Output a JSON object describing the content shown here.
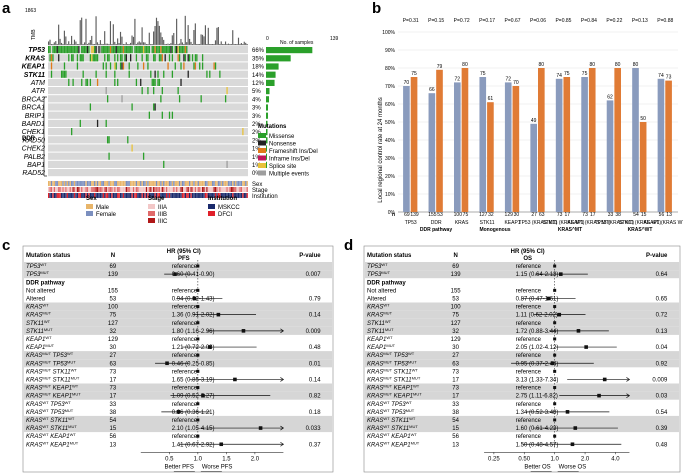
{
  "panels": {
    "a": {
      "letter": "a",
      "ddr_label": "DDR",
      "tmb_label": "TMB",
      "tmb_max": "1863",
      "no_samples_label": "No. of samples",
      "no_samples_ticks": [
        "0",
        "139"
      ],
      "genes": [
        "TP53",
        "KRAS",
        "KEAP1",
        "STK11",
        "ATM",
        "ATR",
        "BRCA2",
        "BRCA1",
        "BRIP1",
        "BARD1",
        "CHEK1",
        "RAD50",
        "CHEK2",
        "PALB2",
        "BAP1",
        "RAD52"
      ],
      "pcts": [
        "66%",
        "35%",
        "18%",
        "14%",
        "12%",
        "5%",
        "4%",
        "3%",
        "3%",
        "2%",
        "2%",
        "2%",
        "1%",
        "1%",
        "1%",
        "0%"
      ],
      "counts": [
        92,
        49,
        25,
        19,
        17,
        7,
        6,
        4,
        4,
        3,
        3,
        3,
        2,
        2,
        2,
        0
      ],
      "row_colors": [
        "#2aa02a",
        "#2aa02a",
        "#2aa02a",
        "#2aa02a",
        "#2aa02a",
        "#2aa02a",
        "#2aa02a",
        "#2aa02a",
        "#2aa02a",
        "#2aa02a",
        "#2aa02a",
        "#2aa02a",
        "#2aa02a",
        "#2aa02a",
        "#2aa02a",
        "#2aa02a"
      ],
      "track_labels": [
        "Sex",
        "Stage",
        "Institution"
      ],
      "mutations_legend_title": "Mutations",
      "mutations_legend": [
        {
          "label": "Missense",
          "color": "#2aa02a"
        },
        {
          "label": "Nonsense",
          "color": "#222222"
        },
        {
          "label": "Frameshift Ins/Del",
          "color": "#e07b1a"
        },
        {
          "label": "Inframe Ins/Del",
          "color": "#c2185b"
        },
        {
          "label": "Splice site",
          "color": "#e8c23a"
        },
        {
          "label": "Multiple events",
          "color": "#9e9e9e"
        }
      ],
      "sex_legend_title": "Sex",
      "sex_legend": [
        {
          "label": "Male",
          "color": "#e8b56a"
        },
        {
          "label": "Female",
          "color": "#7b8fbf"
        }
      ],
      "stage_legend_title": "Stage",
      "stage_legend": [
        {
          "label": "IIIA",
          "color": "#f2c7c7"
        },
        {
          "label": "IIIB",
          "color": "#e06a6a"
        },
        {
          "label": "IIIC",
          "color": "#b01818"
        }
      ],
      "institution_legend_title": "Institution",
      "institution_legend": [
        {
          "label": "MSKCC",
          "color": "#1a2a6c"
        },
        {
          "label": "DFCI",
          "color": "#e0202a"
        }
      ]
    },
    "b": {
      "letter": "b",
      "ylabel": "Local regional control rate at 24 months",
      "n_label": "n",
      "group_labels": [
        "DDR pathway",
        "Monogenous",
        "KRAS^MT",
        "KRAS^WT"
      ],
      "colors": {
        "wt": "#8a9bbd",
        "mt": "#e07b35"
      }
    },
    "c": {
      "letter": "c",
      "header": {
        "status": "Mutation status",
        "n": "N",
        "hr": "HR (95% CI)",
        "sub": "PFS",
        "p": "P-value"
      },
      "xaxis_ticks": [
        "0.5",
        "1.0",
        "1.5",
        "2.0"
      ],
      "left_label": "Better PFS",
      "right_label": "Worse PFS",
      "rows": [
        {
          "status": "TP53^WT",
          "n": "69",
          "hr": "reference",
          "p": "",
          "shade": true
        },
        {
          "status": "TP53^MUT",
          "n": "139",
          "hr": "0.60 (0.41-0.90)",
          "p": "0.007",
          "shade": true
        },
        {
          "status": "DDR pathway",
          "n": "",
          "hr": "",
          "p": "",
          "shade": false
        },
        {
          "status": "Not altered",
          "n": "155",
          "hr": "reference",
          "p": "",
          "shade": false
        },
        {
          "status": "Altered",
          "n": "53",
          "hr": "0.94 (0.62-1.43)",
          "p": "0.79",
          "shade": false
        },
        {
          "status": "KRAS^WT",
          "n": "100",
          "hr": "reference",
          "p": "",
          "shade": true
        },
        {
          "status": "KRAS^MUT",
          "n": "75",
          "hr": "1.36 (0.91-2.02)",
          "p": "0.14",
          "shade": true
        },
        {
          "status": "STK11^WT",
          "n": "127",
          "hr": "reference",
          "p": "",
          "shade": true
        },
        {
          "status": "STK11^MUT",
          "n": "32",
          "hr": "1.80 (1.16-2.96)",
          "p": "0.009",
          "shade": true
        },
        {
          "status": "KEAP1^WT",
          "n": "129",
          "hr": "reference",
          "p": "",
          "shade": false
        },
        {
          "status": "KEAP1^MUT",
          "n": "30",
          "hr": "1.21 (0.72-2.03)",
          "p": "0.48",
          "shade": false
        },
        {
          "status": "KRAS^MUT TP53^WT",
          "n": "27",
          "hr": "reference",
          "p": "",
          "shade": true
        },
        {
          "status": "KRAS^MUT TP53^MUT",
          "n": "63",
          "hr": "0.46 (0.25-0.85)",
          "p": "0.01",
          "shade": true
        },
        {
          "status": "KRAS^MUT STK11^WT",
          "n": "73",
          "hr": "reference",
          "p": "",
          "shade": false
        },
        {
          "status": "KRAS^MUT STK11^MUT",
          "n": "17",
          "hr": "1.65 (0.85-3.19)",
          "p": "0.14",
          "shade": false
        },
        {
          "status": "KRAS^MUT KEAP1^WT",
          "n": "73",
          "hr": "reference",
          "p": "",
          "shade": true
        },
        {
          "status": "KRAS^MUT KEAP1^MUT",
          "n": "17",
          "hr": "1.09 (0.52-2.27)",
          "p": "0.82",
          "shade": true
        },
        {
          "status": "KRAS^WT TP53^WT",
          "n": "33",
          "hr": "reference",
          "p": "",
          "shade": false
        },
        {
          "status": "KRAS^WT TP53^MUT",
          "n": "38",
          "hr": "0.66 (0.36-1.21)",
          "p": "0.18",
          "shade": false
        },
        {
          "status": "KRAS^WT STK11^WT",
          "n": "54",
          "hr": "reference",
          "p": "",
          "shade": true
        },
        {
          "status": "KRAS^WT STK11^MUT",
          "n": "15",
          "hr": "2.10 (1.05-4.15)",
          "p": "0.033",
          "shade": true
        },
        {
          "status": "KRAS^WT KEAP1^WT",
          "n": "56",
          "hr": "reference",
          "p": "",
          "shade": false
        },
        {
          "status": "KRAS^WT KEAP1^MUT",
          "n": "13",
          "hr": "1.41 (0.67-2.92)",
          "p": "0.37",
          "shade": false
        }
      ]
    },
    "d": {
      "letter": "d",
      "header": {
        "status": "Mutation status",
        "n": "N",
        "hr": "HR (95% CI)",
        "sub": "OS",
        "p": "P-value"
      },
      "xaxis_ticks": [
        "0.25",
        "0.50",
        "1.0",
        "2.0",
        "4.0"
      ],
      "left_label": "Better OS",
      "right_label": "Worse OS",
      "rows": [
        {
          "status": "TP53^WT",
          "n": "69",
          "hr": "reference",
          "p": "",
          "shade": true
        },
        {
          "status": "TP53^MUT",
          "n": "139",
          "hr": "1.15 (0.64-2.13)",
          "p": "0.64",
          "shade": true
        },
        {
          "status": "DDR pathway",
          "n": "",
          "hr": "",
          "p": "",
          "shade": false
        },
        {
          "status": "Not altered",
          "n": "155",
          "hr": "reference",
          "p": "",
          "shade": false
        },
        {
          "status": "Altered",
          "n": "53",
          "hr": "0.87 (0.47-1.61)",
          "p": "0.65",
          "shade": false
        },
        {
          "status": "KRAS^WT",
          "n": "100",
          "hr": "reference",
          "p": "",
          "shade": true
        },
        {
          "status": "KRAS^MUT",
          "n": "75",
          "hr": "1.11 (0.62-2.02)",
          "p": "0.72",
          "shade": true
        },
        {
          "status": "STK11^WT",
          "n": "127",
          "hr": "reference",
          "p": "",
          "shade": true
        },
        {
          "status": "STK11^MUT",
          "n": "32",
          "hr": "1.72 (0.88-3.44)",
          "p": "0.13",
          "shade": true
        },
        {
          "status": "KEAP1^WT",
          "n": "129",
          "hr": "reference",
          "p": "",
          "shade": false
        },
        {
          "status": "KEAP1^MUT",
          "n": "30",
          "hr": "2.05 (1.02-4.12)",
          "p": "0.04",
          "shade": false
        },
        {
          "status": "KRAS^MUT TP53^WT",
          "n": "27",
          "hr": "reference",
          "p": "",
          "shade": true
        },
        {
          "status": "KRAS^MUT TP53^MUT",
          "n": "63",
          "hr": "0.95 (0.37-2.44)",
          "p": "0.92",
          "shade": true
        },
        {
          "status": "KRAS^MUT STK11^WT",
          "n": "73",
          "hr": "reference",
          "p": "",
          "shade": false
        },
        {
          "status": "KRAS^MUT STK11^MUT",
          "n": "17",
          "hr": "3.13 (1.33-7.34)",
          "p": "0.009",
          "shade": false
        },
        {
          "status": "KRAS^MUT KEAP1^WT",
          "n": "73",
          "hr": "reference",
          "p": "",
          "shade": true
        },
        {
          "status": "KRAS^MUT KEAP1^MUT",
          "n": "17",
          "hr": "2.75 (1.11-6.82)",
          "p": "0.03",
          "shade": true
        },
        {
          "status": "KRAS^WT TP53^WT",
          "n": "33",
          "hr": "reference",
          "p": "",
          "shade": false
        },
        {
          "status": "KRAS^WT TP53^MUT",
          "n": "38",
          "hr": "1.34 (0.52-3.48)",
          "p": "0.54",
          "shade": false
        },
        {
          "status": "KRAS^WT STK11^WT",
          "n": "54",
          "hr": "reference",
          "p": "",
          "shade": true
        },
        {
          "status": "KRAS^WT STK11^MUT",
          "n": "15",
          "hr": "1.60 (0.61-4.23)",
          "p": "0.39",
          "shade": true
        },
        {
          "status": "KRAS^WT KEAP1^WT",
          "n": "56",
          "hr": "reference",
          "p": "",
          "shade": false
        },
        {
          "status": "KRAS^WT KEAP1^MUT",
          "n": "13",
          "hr": "1.50 (0.48-4.57)",
          "p": "0.48",
          "shade": false
        }
      ]
    }
  },
  "chart_data": [
    {
      "type": "bar",
      "title": "Local regional control rate at 24 months",
      "ylabel": "Local regional control rate at 24 months",
      "ylim": [
        0,
        100
      ],
      "yticks": [
        "0%",
        "10%",
        "20%",
        "30%",
        "40%",
        "50%",
        "60%",
        "70%",
        "80%",
        "90%",
        "100%"
      ],
      "categories": [
        "TP53",
        "DDR",
        "KRAS",
        "STK11",
        "KEAP1",
        "TP53 (KRAS MT)",
        "STK11 (KRAS MT)",
        "KEAP1 (KRAS MT)",
        "TP53 (KRAS WT)",
        "STK11 (KRAS WT)",
        "KEAP1 (KRAS WT)"
      ],
      "p_values": [
        "P=0.31",
        "P=0.15",
        "P=0.72",
        "P=0.17",
        "P=0.67",
        "P=0.06",
        "P=0.85",
        "P=0.84",
        "P=0.22",
        "P=0.13",
        "P=0.88"
      ],
      "series": [
        {
          "name": "WT / Not altered",
          "values": [
            70,
            66,
            72,
            75,
            72,
            49,
            74,
            75,
            62,
            80,
            74
          ]
        },
        {
          "name": "MUT / Altered",
          "values": [
            75,
            79,
            80,
            61,
            70,
            80,
            75,
            80,
            80,
            50,
            73
          ]
        }
      ],
      "n_wt": [
        "69",
        "155",
        "100",
        "127",
        "129",
        "27",
        "73",
        "73",
        "33",
        "54",
        "56"
      ],
      "n_mt": [
        "139",
        "53",
        "75",
        "32",
        "30",
        "63",
        "17",
        "17",
        "38",
        "15",
        "13"
      ],
      "group_tick_labels": [
        "TP53^WT TP53^MUT",
        "DDR alt",
        "KRAS^WT KRAS^MUT",
        "STK11^WT STK11^MUT",
        "KEAP1^WT KEAP1^MUT",
        "TP53^WT TP53^MUT",
        "STK11^WT STK11^MUT",
        "KEAP1^WT KEAP1^MUT",
        "TP53^WT TP53^MUT",
        "STK11^WT STK11^MUT",
        "KEAP1^WT KEAP1^MUT"
      ]
    },
    {
      "type": "forest",
      "title": "PFS",
      "xscale": "linear",
      "xlim": [
        0,
        2.5
      ],
      "xticks": [
        0.5,
        1.0,
        1.5,
        2.0
      ],
      "hr": [
        null,
        0.6,
        null,
        null,
        0.94,
        null,
        1.36,
        null,
        1.8,
        null,
        1.21,
        null,
        0.46,
        null,
        1.65,
        null,
        1.09,
        null,
        0.66,
        null,
        2.1,
        null,
        1.41
      ],
      "low": [
        null,
        0.41,
        null,
        null,
        0.62,
        null,
        0.91,
        null,
        1.16,
        null,
        0.72,
        null,
        0.25,
        null,
        0.85,
        null,
        0.52,
        null,
        0.36,
        null,
        1.05,
        null,
        0.67
      ],
      "high": [
        null,
        0.9,
        null,
        null,
        1.43,
        null,
        2.02,
        null,
        2.96,
        null,
        2.03,
        null,
        0.85,
        null,
        3.19,
        null,
        2.27,
        null,
        1.21,
        null,
        4.15,
        null,
        2.92
      ],
      "ref": [
        true,
        false,
        false,
        true,
        false,
        true,
        false,
        true,
        false,
        true,
        false,
        true,
        false,
        true,
        false,
        true,
        false,
        true,
        false,
        true,
        false,
        true,
        false
      ]
    },
    {
      "type": "forest",
      "title": "OS",
      "xscale": "log2",
      "xlim": [
        0.2,
        5.5
      ],
      "xticks": [
        0.25,
        0.5,
        1.0,
        2.0,
        4.0
      ],
      "hr": [
        null,
        1.15,
        null,
        null,
        0.87,
        null,
        1.11,
        null,
        1.72,
        null,
        2.05,
        null,
        0.95,
        null,
        3.13,
        null,
        2.75,
        null,
        1.34,
        null,
        1.6,
        null,
        1.5
      ],
      "low": [
        null,
        0.64,
        null,
        null,
        0.47,
        null,
        0.62,
        null,
        0.88,
        null,
        1.02,
        null,
        0.37,
        null,
        1.33,
        null,
        1.11,
        null,
        0.52,
        null,
        0.61,
        null,
        0.48
      ],
      "high": [
        null,
        2.13,
        null,
        null,
        1.61,
        null,
        2.02,
        null,
        3.44,
        null,
        4.12,
        null,
        2.44,
        null,
        7.34,
        null,
        6.82,
        null,
        3.48,
        null,
        4.23,
        null,
        4.57
      ],
      "ref": [
        true,
        false,
        false,
        true,
        false,
        true,
        false,
        true,
        false,
        true,
        false,
        true,
        false,
        true,
        false,
        true,
        false,
        true,
        false,
        true,
        false,
        true,
        false
      ]
    }
  ]
}
